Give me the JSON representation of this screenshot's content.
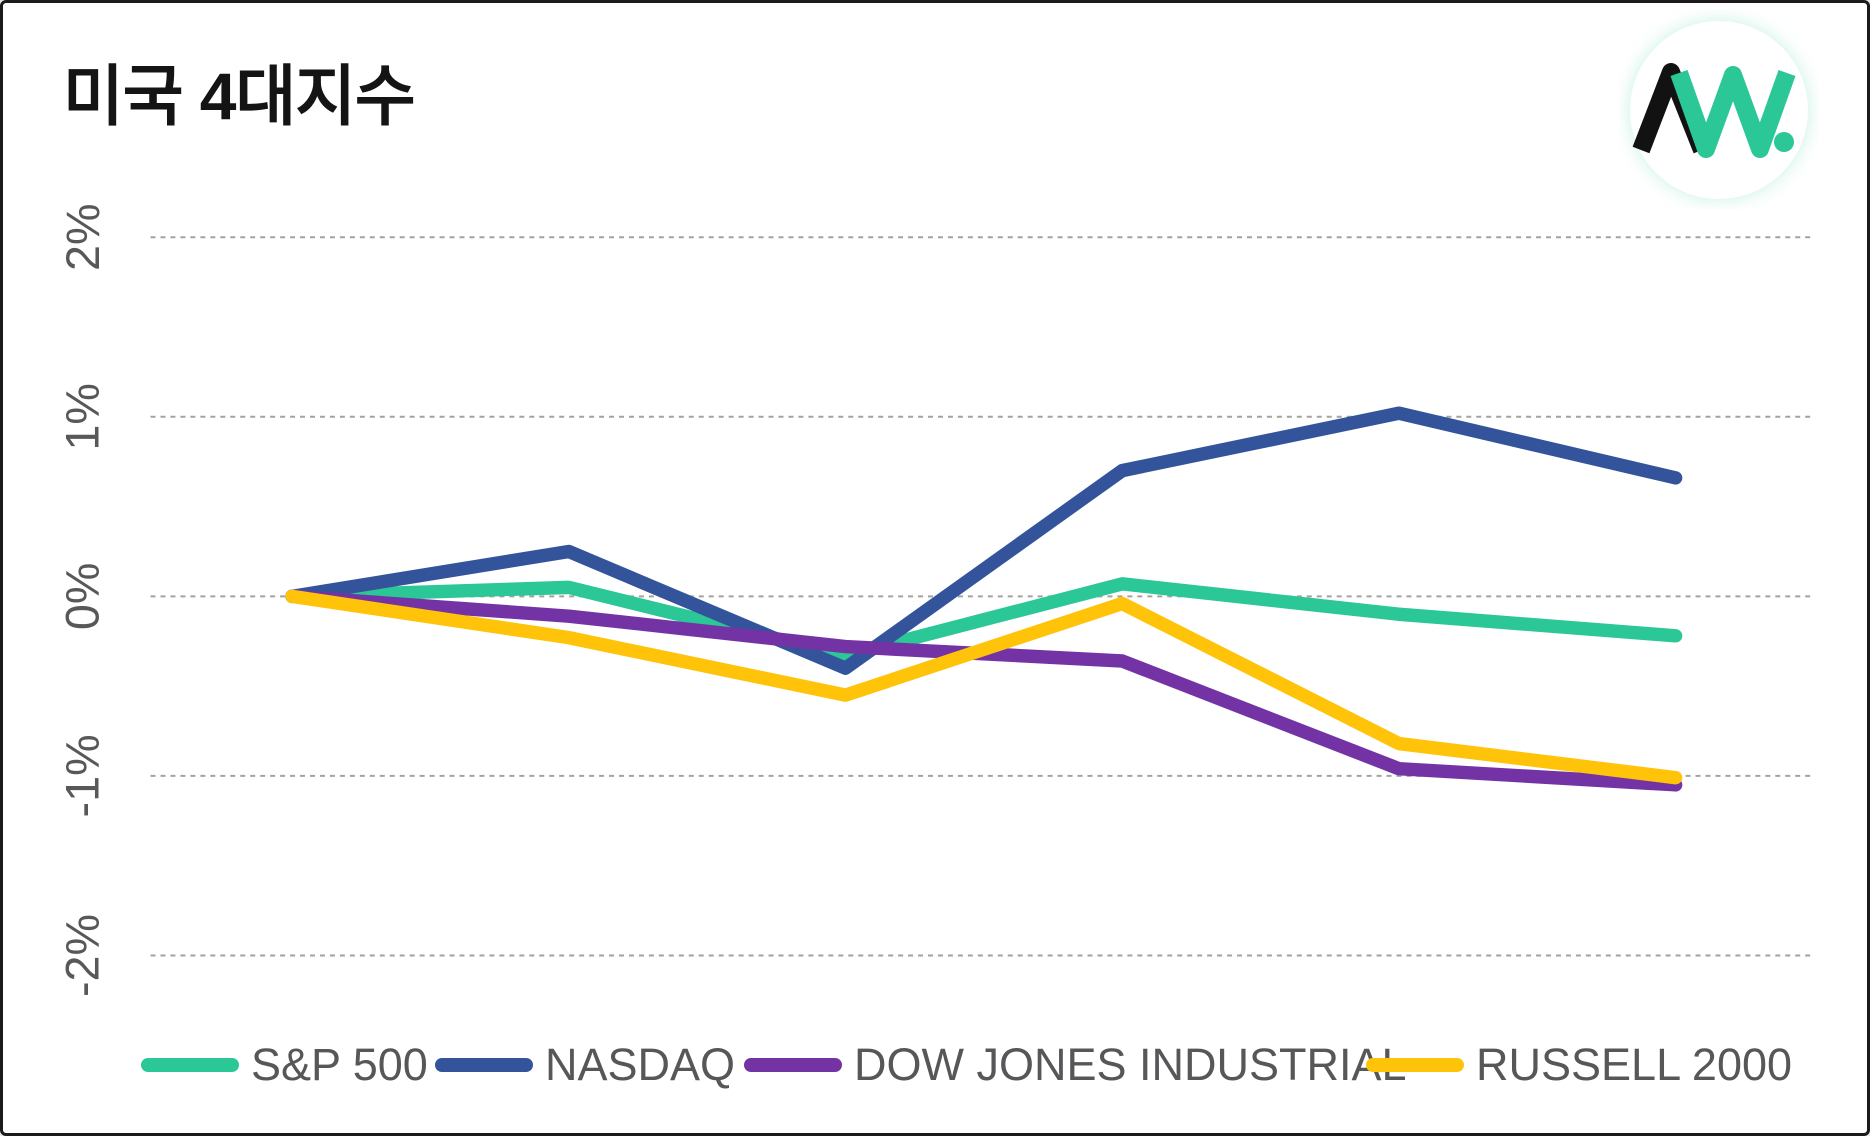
{
  "header": {
    "title": "미국 4대지수",
    "logo": {
      "text": "AW.",
      "a_color": "#121212",
      "w_color": "#2cc796",
      "circle_color": "#ffffff"
    }
  },
  "chart_data": {
    "type": "line",
    "title": "미국 4대지수",
    "xlabel": "",
    "ylabel": "",
    "x_tick_labels_visible": false,
    "n_points": 6,
    "ylim": [
      -2.5,
      2.5
    ],
    "grid": "horizontal-dashed",
    "gridline_color": "#a2a2a2",
    "legend_position": "bottom",
    "yticks": [
      {
        "label": "2%",
        "value": 2
      },
      {
        "label": "1%",
        "value": 1
      },
      {
        "label": "0%",
        "value": 0
      },
      {
        "label": "-1%",
        "value": -1
      },
      {
        "label": "-2%",
        "value": -2
      }
    ],
    "series": [
      {
        "name": "S&P 500",
        "color": "#2cc796",
        "values": [
          0,
          0.05,
          -0.33,
          0.07,
          -0.1,
          -0.22
        ]
      },
      {
        "name": "NASDAQ",
        "color": "#33549b",
        "values": [
          0,
          0.25,
          -0.4,
          0.7,
          1.02,
          0.66
        ]
      },
      {
        "name": "DOW JONES INDUSTRIAL",
        "color": "#7333a5",
        "values": [
          0,
          -0.11,
          -0.28,
          -0.36,
          -0.96,
          -1.05
        ]
      },
      {
        "name": "RUSSELL 2000",
        "color": "#ffc30a",
        "values": [
          0,
          -0.23,
          -0.55,
          -0.04,
          -0.82,
          -1.01
        ]
      }
    ]
  }
}
